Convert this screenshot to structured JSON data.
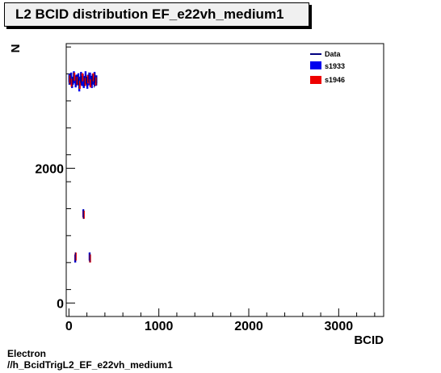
{
  "title": "L2 BCID distribution EF_e22vh_medium1",
  "footer": {
    "line1": "Electron",
    "line2": "//h_BcidTrigL2_EF_e22vh_medium1"
  },
  "chart_data": {
    "type": "scatter",
    "title": "L2 BCID distribution EF_e22vh_medium1",
    "xlabel": "BCID",
    "ylabel": "N",
    "xlim": [
      -30,
      3500
    ],
    "ylim": [
      -200,
      3850
    ],
    "x_ticks": [
      0,
      1000,
      2000,
      3000
    ],
    "y_ticks": [
      0,
      2000
    ],
    "legend": {
      "placement": "top-right",
      "entries": [
        "Data",
        "s1933",
        "s1946"
      ]
    },
    "grid": false,
    "series": [
      {
        "name": "s1933",
        "color": "#0000ee",
        "points": [
          [
            5,
            3340
          ],
          [
            15,
            3300
          ],
          [
            25,
            3360
          ],
          [
            35,
            3250
          ],
          [
            45,
            3300
          ],
          [
            55,
            3380
          ],
          [
            65,
            3320
          ],
          [
            75,
            3260
          ],
          [
            85,
            3330
          ],
          [
            95,
            3290
          ],
          [
            105,
            3350
          ],
          [
            115,
            3200
          ],
          [
            125,
            3300
          ],
          [
            135,
            3370
          ],
          [
            145,
            3280
          ],
          [
            155,
            3340
          ],
          [
            165,
            3250
          ],
          [
            175,
            3310
          ],
          [
            185,
            3380
          ],
          [
            195,
            3300
          ],
          [
            205,
            3240
          ],
          [
            215,
            3330
          ],
          [
            225,
            3290
          ],
          [
            235,
            3360
          ],
          [
            245,
            3310
          ],
          [
            255,
            3250
          ],
          [
            265,
            3340
          ],
          [
            275,
            3300
          ],
          [
            285,
            3370
          ],
          [
            295,
            3280
          ],
          [
            305,
            3320
          ],
          [
            70,
            660
          ],
          [
            160,
            1330
          ],
          [
            230,
            690
          ]
        ]
      },
      {
        "name": "s1946",
        "color": "#ee0000",
        "points": [
          [
            10,
            3320
          ],
          [
            30,
            3270
          ],
          [
            60,
            3360
          ],
          [
            90,
            3300
          ],
          [
            120,
            3240
          ],
          [
            150,
            3350
          ],
          [
            180,
            3280
          ],
          [
            210,
            3320
          ],
          [
            240,
            3260
          ],
          [
            270,
            3350
          ],
          [
            300,
            3290
          ],
          [
            75,
            690
          ],
          [
            165,
            1310
          ],
          [
            235,
            660
          ]
        ]
      },
      {
        "name": "Data",
        "color": "#000080",
        "points": [
          [
            0,
            3310
          ],
          [
            20,
            3330
          ],
          [
            40,
            3280
          ],
          [
            50,
            3350
          ],
          [
            80,
            3300
          ],
          [
            100,
            3320
          ],
          [
            110,
            3260
          ],
          [
            130,
            3340
          ],
          [
            140,
            3300
          ],
          [
            170,
            3290
          ],
          [
            190,
            3330
          ],
          [
            200,
            3280
          ],
          [
            220,
            3350
          ],
          [
            250,
            3300
          ],
          [
            260,
            3320
          ],
          [
            280,
            3270
          ],
          [
            290,
            3340
          ],
          [
            310,
            3300
          ],
          [
            72,
            680
          ],
          [
            162,
            1320
          ],
          [
            232,
            680
          ]
        ]
      }
    ]
  }
}
